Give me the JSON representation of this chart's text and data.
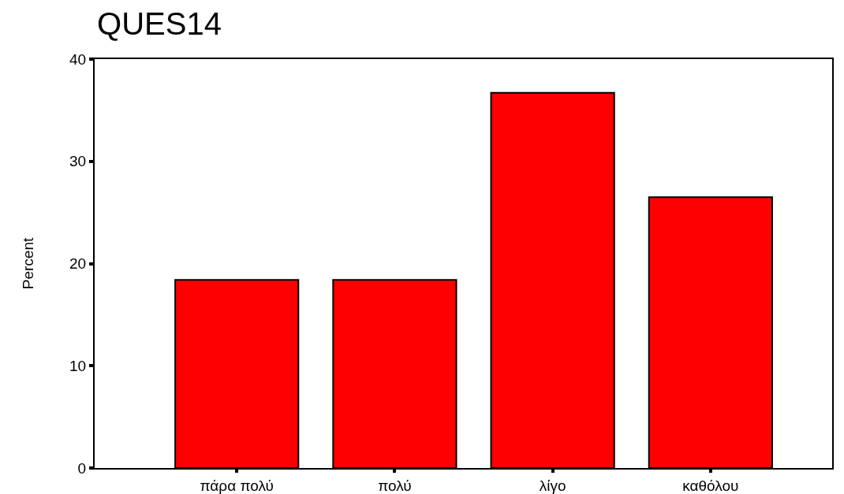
{
  "chart_data": {
    "type": "bar",
    "title": "QUES14",
    "ylabel": "Percent",
    "categories": [
      "πάρα πολύ",
      "πολύ",
      "λίγο",
      "καθόλου"
    ],
    "values": [
      18.4,
      18.4,
      36.7,
      26.5
    ],
    "color": "#ff0000",
    "ylim": [
      0,
      40
    ],
    "yticks": [
      0,
      10,
      20,
      30,
      40
    ],
    "grid": false,
    "legend": false
  }
}
